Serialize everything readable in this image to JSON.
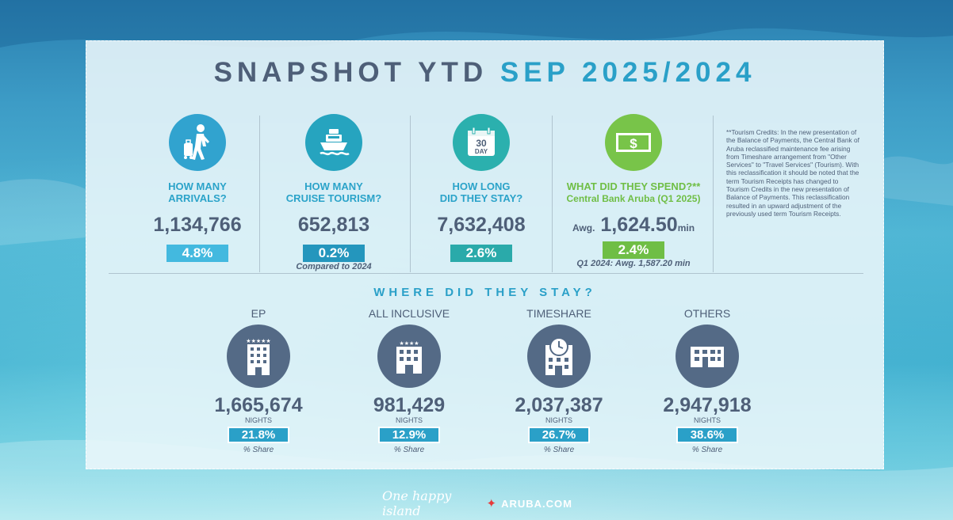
{
  "title": {
    "part1": "SNAPSHOT YTD",
    "part2": "SEP 2025/2024"
  },
  "stats": [
    {
      "question": "HOW MANY\nARRIVALS?",
      "value": "1,134,766",
      "change": "4.8%",
      "badge_color": "#43b9df",
      "icon": "traveler-icon"
    },
    {
      "question": "HOW MANY\nCRUISE TOURISM?",
      "value": "652,813",
      "change": "0.2%",
      "badge_color": "#2496bd",
      "note": "Compared to 2024",
      "icon": "cruise-ship-icon"
    },
    {
      "question": "HOW LONG\nDID THEY STAY?",
      "value": "7,632,408",
      "change": "2.6%",
      "badge_color": "#2aaaaa",
      "icon": "calendar-icon",
      "calendar_num": "30",
      "calendar_label": "DAY"
    },
    {
      "question": "WHAT DID THEY SPEND?**",
      "question_sub": "Central Bank Aruba (Q1 2025)",
      "value_prefix": "Awg.",
      "value": "1,624.50",
      "value_suffix": "min",
      "change": "2.4%",
      "badge_color": "#6fbe45",
      "note": "Q1 2024: Awg. 1,587.20 min",
      "icon": "money-icon"
    }
  ],
  "colors": {
    "accent": "#2aa0c8",
    "text": "#4e5f78",
    "green": "#6fbe45",
    "teal": "#2aaaaa",
    "icon_blue": "#31a3cf",
    "icon_green": "#78c449",
    "icon_teal": "#2bb0ae"
  },
  "credit_note": "**Tourism Credits: In the new presentation of the Balance of Payments, the Central Bank of Aruba reclassified maintenance fee arising from Timeshare arrangement from \"Other Services\" to \"Travel Services\" (Tourism). With this reclassification it should be noted that the term Tourism Receipts has changed to Tourism Credits in the new presentation of Balance of Payments. This reclassification resulted in an upward adjustment of the previously used term Tourism Receipts.",
  "stay": {
    "heading": "WHERE DID THEY STAY?",
    "items": [
      {
        "label": "EP",
        "value": "1,665,674",
        "unit": "NIGHTS",
        "share": "21.8%",
        "share_label": "% Share",
        "stars": "★★★★★"
      },
      {
        "label": "ALL INCLUSIVE",
        "value": "981,429",
        "unit": "NIGHTS",
        "share": "12.9%",
        "share_label": "% Share",
        "stars": "★★★★"
      },
      {
        "label": "TIMESHARE",
        "value": "2,037,387",
        "unit": "NIGHTS",
        "share": "26.7%",
        "share_label": "% Share"
      },
      {
        "label": "OTHERS",
        "value": "2,947,918",
        "unit": "NIGHTS",
        "share": "38.6%",
        "share_label": "% Share"
      }
    ]
  },
  "footer": {
    "tagline": "One happy island",
    "site": "ARUBA.COM"
  }
}
